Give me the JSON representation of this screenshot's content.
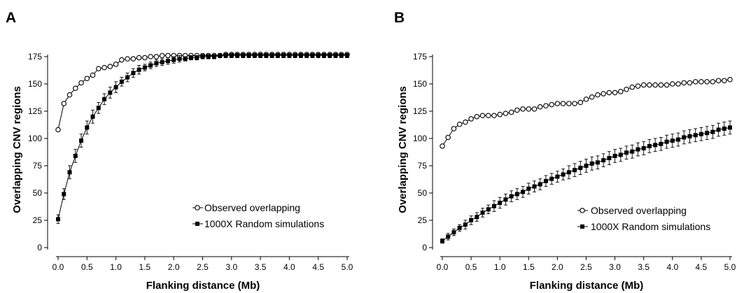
{
  "chart_data": [
    {
      "type": "line",
      "panel_label": "A",
      "xlabel": "Flanking distance (Mb)",
      "ylabel": "Overlapping CNV regions",
      "xlim": [
        0,
        5
      ],
      "ylim": [
        0,
        175
      ],
      "xticks": [
        0,
        0.5,
        1,
        1.5,
        2,
        2.5,
        3,
        3.5,
        4,
        4.5,
        5
      ],
      "xtick_labels": [
        "0.0",
        "0.5",
        "1.0",
        "1.5",
        "2.0",
        "2.5",
        "3.0",
        "3.5",
        "4.0",
        "4.5",
        "5.0"
      ],
      "yticks": [
        0,
        25,
        50,
        75,
        100,
        125,
        150,
        175
      ],
      "ytick_labels": [
        "0",
        "25",
        "50",
        "75",
        "100",
        "125",
        "150",
        "175"
      ],
      "grid": false,
      "legend_position": "bottom-right",
      "x": [
        0,
        0.1,
        0.2,
        0.3,
        0.4,
        0.5,
        0.6,
        0.7,
        0.8,
        0.9,
        1.0,
        1.1,
        1.2,
        1.3,
        1.4,
        1.5,
        1.6,
        1.7,
        1.8,
        1.9,
        2.0,
        2.1,
        2.2,
        2.3,
        2.4,
        2.5,
        2.6,
        2.7,
        2.8,
        2.9,
        3.0,
        3.1,
        3.2,
        3.3,
        3.4,
        3.5,
        3.6,
        3.7,
        3.8,
        3.9,
        4.0,
        4.1,
        4.2,
        4.3,
        4.4,
        4.5,
        4.6,
        4.7,
        4.8,
        4.9,
        5.0
      ],
      "series": [
        {
          "name": "Observed overlapping",
          "marker": "open-circle",
          "values": [
            108,
            132,
            140,
            146,
            151,
            155,
            158,
            164,
            165,
            166,
            168,
            172,
            173,
            173,
            174,
            174,
            175,
            175,
            176,
            176,
            176,
            176,
            176,
            176,
            176,
            176,
            176,
            176,
            176,
            177,
            177,
            177,
            177,
            177,
            177,
            177,
            177,
            177,
            177,
            177,
            177,
            177,
            177,
            177,
            177,
            177,
            177,
            177,
            177,
            177,
            177
          ]
        },
        {
          "name": "1000X Random simulations",
          "marker": "filled-square",
          "values": [
            26,
            49,
            69,
            84,
            98,
            110,
            120,
            128,
            136,
            142,
            147,
            152,
            156,
            160,
            163,
            165,
            167,
            169,
            170,
            171,
            172,
            173,
            173,
            174,
            174,
            175,
            175,
            175,
            176,
            176,
            176,
            176,
            176,
            176,
            176,
            176,
            176,
            176,
            176,
            176,
            176,
            176,
            176,
            176,
            176,
            176,
            176,
            176,
            176,
            176,
            176
          ],
          "error": [
            4,
            5,
            6,
            6,
            6,
            6,
            6,
            5,
            5,
            5,
            5,
            4,
            4,
            4,
            4,
            3,
            3,
            3,
            3,
            3,
            3,
            3,
            2,
            2,
            2,
            2,
            2,
            2,
            2,
            2,
            2,
            2,
            2,
            2,
            2,
            2,
            2,
            2,
            2,
            2,
            2,
            2,
            2,
            2,
            2,
            2,
            2,
            2,
            2,
            2,
            2
          ]
        }
      ]
    },
    {
      "type": "line",
      "panel_label": "B",
      "xlabel": "Flanking distance (Mb)",
      "ylabel": "Overlapping CNV regions",
      "xlim": [
        0,
        5
      ],
      "ylim": [
        0,
        175
      ],
      "xticks": [
        0,
        0.5,
        1,
        1.5,
        2,
        2.5,
        3,
        3.5,
        4,
        4.5,
        5
      ],
      "xtick_labels": [
        "0.0",
        "0.5",
        "1.0",
        "1.5",
        "2.0",
        "2.5",
        "3.0",
        "3.5",
        "4.0",
        "4.5",
        "5.0"
      ],
      "yticks": [
        0,
        25,
        50,
        75,
        100,
        125,
        150,
        175
      ],
      "ytick_labels": [
        "0",
        "25",
        "50",
        "75",
        "100",
        "125",
        "150",
        "175"
      ],
      "grid": false,
      "legend_position": "bottom-right",
      "x": [
        0,
        0.1,
        0.2,
        0.3,
        0.4,
        0.5,
        0.6,
        0.7,
        0.8,
        0.9,
        1.0,
        1.1,
        1.2,
        1.3,
        1.4,
        1.5,
        1.6,
        1.7,
        1.8,
        1.9,
        2.0,
        2.1,
        2.2,
        2.3,
        2.4,
        2.5,
        2.6,
        2.7,
        2.8,
        2.9,
        3.0,
        3.1,
        3.2,
        3.3,
        3.4,
        3.5,
        3.6,
        3.7,
        3.8,
        3.9,
        4.0,
        4.1,
        4.2,
        4.3,
        4.4,
        4.5,
        4.6,
        4.7,
        4.8,
        4.9,
        5.0
      ],
      "series": [
        {
          "name": "Observed overlapping",
          "marker": "open-circle",
          "values": [
            93,
            101,
            109,
            113,
            115,
            118,
            120,
            121,
            121,
            121,
            122,
            123,
            124,
            126,
            127,
            127,
            127,
            129,
            130,
            131,
            132,
            132,
            132,
            132,
            133,
            136,
            138,
            140,
            141,
            142,
            142,
            143,
            145,
            147,
            148,
            149,
            149,
            149,
            149,
            149,
            150,
            150,
            151,
            151,
            152,
            152,
            152,
            152,
            153,
            153,
            154
          ],
          "error": []
        },
        {
          "name": "1000X Random simulations",
          "marker": "filled-square",
          "values": [
            6,
            10,
            14,
            18,
            21,
            25,
            28,
            32,
            35,
            38,
            41,
            44,
            47,
            49,
            51,
            54,
            56,
            58,
            61,
            63,
            65,
            67,
            69,
            71,
            73,
            75,
            77,
            78,
            80,
            82,
            84,
            85,
            87,
            88,
            90,
            91,
            93,
            94,
            95,
            97,
            98,
            99,
            101,
            102,
            103,
            104,
            105,
            106,
            108,
            109,
            110
          ],
          "error": [
            2,
            3,
            3,
            3,
            4,
            4,
            4,
            4,
            4,
            5,
            5,
            5,
            5,
            5,
            5,
            5,
            5,
            5,
            5,
            5,
            5,
            5,
            6,
            6,
            6,
            6,
            6,
            6,
            6,
            6,
            6,
            6,
            6,
            6,
            6,
            6,
            6,
            6,
            6,
            6,
            6,
            6,
            6,
            6,
            6,
            6,
            6,
            6,
            6,
            6,
            6
          ]
        }
      ]
    }
  ]
}
